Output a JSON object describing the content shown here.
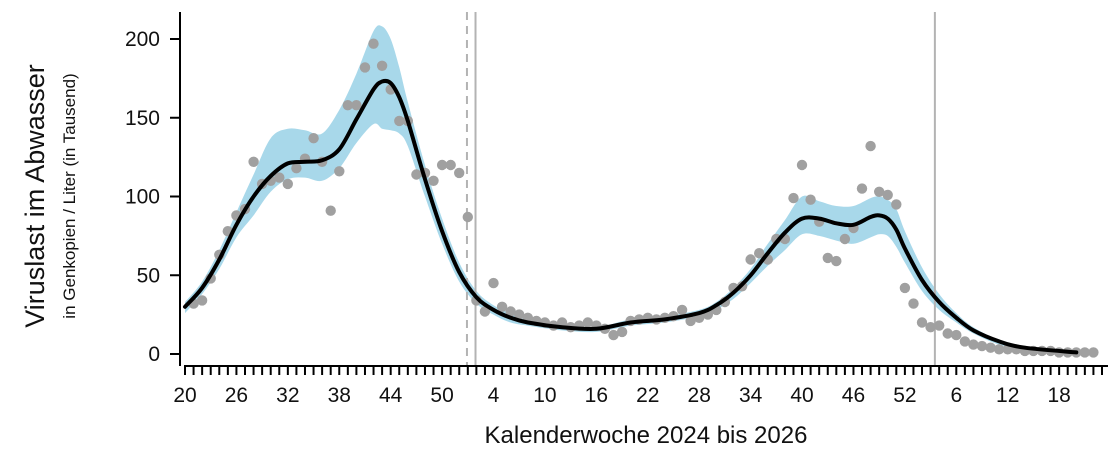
{
  "chart_data": {
    "type": "line",
    "xlabel": "Kalenderwoche 2024 bis 2026",
    "ylabel": "Viruslast im Abwasser",
    "ylabel_sub": "in Genkopien / Liter (in Tausend)",
    "ylim": [
      0,
      220
    ],
    "y_ticks": [
      0,
      50,
      100,
      150,
      200
    ],
    "x_range": [
      0,
      107
    ],
    "x_ticks": [
      {
        "x": 0,
        "label": "20"
      },
      {
        "x": 6,
        "label": "26"
      },
      {
        "x": 12,
        "label": "32"
      },
      {
        "x": 18,
        "label": "38"
      },
      {
        "x": 24,
        "label": "44"
      },
      {
        "x": 30,
        "label": "50"
      },
      {
        "x": 36,
        "label": "4"
      },
      {
        "x": 42,
        "label": "10"
      },
      {
        "x": 48,
        "label": "16"
      },
      {
        "x": 54,
        "label": "22"
      },
      {
        "x": 60,
        "label": "28"
      },
      {
        "x": 66,
        "label": "34"
      },
      {
        "x": 72,
        "label": "40"
      },
      {
        "x": 78,
        "label": "46"
      },
      {
        "x": 84,
        "label": "52"
      },
      {
        "x": 90,
        "label": "6"
      },
      {
        "x": 96,
        "label": "12"
      },
      {
        "x": 102,
        "label": "18"
      }
    ],
    "vertical_lines": [
      {
        "x": 32.9,
        "style": "dashed"
      },
      {
        "x": 33.9,
        "style": "solid"
      },
      {
        "x": 87.5,
        "style": "solid"
      }
    ],
    "colors": {
      "band": "#a8d8ea",
      "line": "#000000",
      "points": "#a0a0a0",
      "vline": "#b3b3b3"
    },
    "trend": {
      "x": [
        0,
        2,
        4,
        6,
        8,
        10,
        12,
        14,
        16,
        18,
        20,
        22,
        23,
        24,
        25,
        26,
        28,
        30,
        32,
        34,
        36,
        38,
        40,
        44,
        48,
        52,
        56,
        60,
        62,
        64,
        66,
        68,
        70,
        72,
        74,
        76,
        78,
        80,
        81,
        82,
        83,
        84,
        86,
        88,
        90,
        92,
        95,
        98,
        104
      ],
      "y": [
        30,
        42,
        60,
        82,
        100,
        113,
        121,
        122,
        123,
        130,
        149,
        168,
        173,
        172,
        163,
        148,
        111,
        78,
        52,
        36,
        28,
        23,
        20,
        17,
        16,
        20,
        22,
        26,
        31,
        39,
        50,
        64,
        77,
        86,
        86,
        83,
        82,
        87,
        88,
        86,
        79,
        67,
        47,
        33,
        23,
        15,
        8,
        4,
        1
      ]
    },
    "band": {
      "x": [
        0,
        2,
        4,
        6,
        8,
        10,
        12,
        14,
        16,
        18,
        20,
        22,
        23,
        24,
        25,
        26,
        28,
        30,
        32,
        34,
        36,
        38,
        40,
        44,
        48,
        52,
        56,
        60,
        62,
        64,
        66,
        68,
        70,
        72,
        74,
        76,
        78,
        80,
        81,
        82,
        83,
        84,
        86,
        88,
        90,
        92,
        95,
        98,
        104
      ],
      "upper": [
        33,
        46,
        66,
        90,
        114,
        137,
        143,
        142,
        140,
        155,
        178,
        205,
        208,
        200,
        182,
        160,
        120,
        86,
        58,
        40,
        31,
        26,
        22,
        18,
        17,
        22,
        24,
        28,
        33,
        42,
        54,
        70,
        85,
        100,
        97,
        94,
        94,
        99,
        100,
        98,
        92,
        78,
        55,
        38,
        26,
        17,
        9,
        5,
        2
      ],
      "lower": [
        26,
        38,
        54,
        74,
        88,
        103,
        111,
        112,
        110,
        118,
        134,
        146,
        143,
        142,
        140,
        132,
        100,
        70,
        46,
        32,
        25,
        20,
        18,
        15,
        14,
        18,
        20,
        24,
        28,
        35,
        45,
        56,
        66,
        76,
        75,
        72,
        70,
        74,
        76,
        75,
        68,
        58,
        40,
        28,
        20,
        13,
        6,
        3,
        0
      ]
    },
    "points": {
      "x": [
        1,
        2,
        3,
        4,
        5,
        6,
        7,
        8,
        9,
        10,
        11,
        12,
        13,
        14,
        15,
        16,
        17,
        18,
        19,
        20,
        21,
        22,
        23,
        24,
        25,
        26,
        27,
        28,
        29,
        30,
        31,
        32,
        33,
        34,
        35,
        36,
        37,
        38,
        39,
        40,
        41,
        42,
        43,
        44,
        45,
        46,
        47,
        48,
        49,
        50,
        51,
        52,
        53,
        54,
        55,
        56,
        57,
        58,
        59,
        60,
        61,
        62,
        63,
        64,
        65,
        66,
        67,
        68,
        69,
        70,
        71,
        72,
        73,
        74,
        75,
        76,
        77,
        78,
        79,
        80,
        81,
        82,
        83,
        84,
        85,
        86,
        87,
        88,
        89,
        90,
        91,
        92,
        93,
        94,
        95,
        96,
        97,
        98,
        99,
        100,
        101,
        102,
        103,
        104,
        105,
        106
      ],
      "y": [
        32,
        34,
        48,
        63,
        78,
        88,
        92,
        122,
        108,
        110,
        112,
        108,
        118,
        124,
        137,
        122,
        91,
        116,
        158,
        158,
        182,
        197,
        183,
        168,
        148,
        148,
        114,
        115,
        110,
        120,
        120,
        115,
        87,
        34,
        27,
        45,
        30,
        27,
        25,
        23,
        21,
        20,
        18,
        20,
        17,
        18,
        20,
        18,
        16,
        12,
        14,
        21,
        22,
        23,
        22,
        23,
        24,
        28,
        21,
        23,
        25,
        28,
        33,
        42,
        43,
        60,
        64,
        60,
        73,
        73,
        99,
        120,
        98,
        84,
        61,
        59,
        73,
        80,
        105,
        132,
        103,
        101,
        95,
        42,
        32,
        20,
        17,
        18,
        13,
        12,
        8,
        6,
        5,
        4,
        3,
        3,
        3,
        2,
        2,
        2,
        2,
        1,
        1,
        1,
        1,
        1
      ]
    }
  }
}
